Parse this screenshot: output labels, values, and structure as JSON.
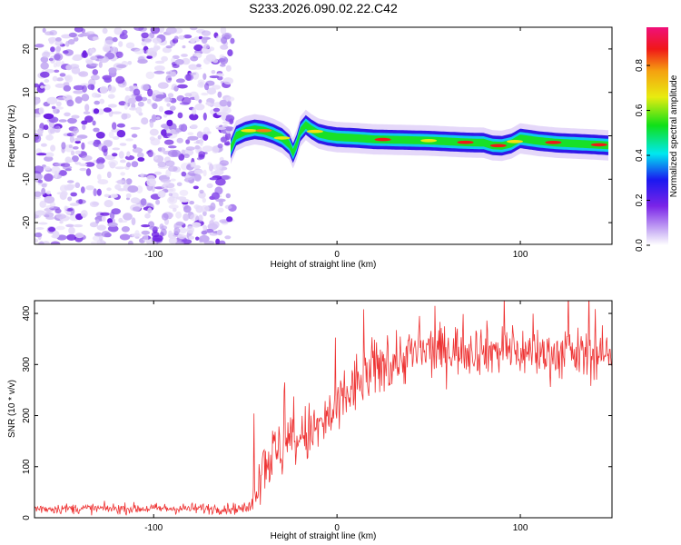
{
  "chart_data": [
    {
      "type": "heatmap",
      "title": "S233.2026.090.02.22.C42",
      "xlabel": "Height of straight line (km)",
      "ylabel": "Frequency (Hz)",
      "xlim": [
        -165,
        150
      ],
      "ylim": [
        -25,
        25
      ],
      "xticks": [
        -100,
        0,
        100
      ],
      "yticks": [
        -20,
        -10,
        0,
        10,
        20
      ],
      "noise_region_x": [
        -165,
        -57
      ],
      "ridge": {
        "x": [
          -58,
          -55,
          -50,
          -45,
          -40,
          -35,
          -30,
          -26,
          -24,
          -22,
          -20,
          -17,
          -14,
          -10,
          -5,
          0,
          10,
          20,
          30,
          40,
          50,
          60,
          70,
          80,
          85,
          90,
          95,
          100,
          110,
          120,
          130,
          140,
          148
        ],
        "frequency": [
          -3,
          0,
          1,
          1.5,
          1.2,
          0.5,
          -0.5,
          -2,
          -4,
          -2,
          1,
          2.5,
          1.5,
          0.5,
          0,
          -0.3,
          -0.5,
          -0.8,
          -0.9,
          -1,
          -1.1,
          -1.3,
          -1.5,
          -1.6,
          -2.2,
          -2.3,
          -1.8,
          -0.6,
          -1.2,
          -1.6,
          -1.8,
          -2,
          -2.2
        ]
      },
      "colorbar": {
        "label": "Normalized spectral amplitude",
        "ticks": [
          "0.0",
          "0.2",
          "0.4",
          "0.6",
          "0.8"
        ],
        "range": [
          0,
          0.97
        ]
      }
    },
    {
      "type": "line",
      "xlabel": "Height of straight line (km)",
      "ylabel": "SNR (10 * v/v)",
      "xlim": [
        -165,
        150
      ],
      "ylim": [
        0,
        425
      ],
      "xticks": [
        -100,
        0,
        100
      ],
      "yticks": [
        0,
        100,
        200,
        300,
        400
      ],
      "color": "#ee3333",
      "series": [
        {
          "name": "SNR",
          "envelope_x": [
            -165,
            -48,
            -45,
            -40,
            -30,
            -20,
            -10,
            0,
            10,
            20,
            30,
            40,
            60,
            80,
            100,
            120,
            150
          ],
          "envelope_mean": [
            18,
            18,
            60,
            110,
            135,
            155,
            175,
            210,
            260,
            290,
            305,
            320,
            330,
            330,
            325,
            320,
            320
          ],
          "envelope_spread": [
            9,
            10,
            45,
            55,
            55,
            55,
            55,
            55,
            55,
            55,
            50,
            50,
            45,
            45,
            45,
            45,
            45
          ]
        }
      ]
    }
  ]
}
